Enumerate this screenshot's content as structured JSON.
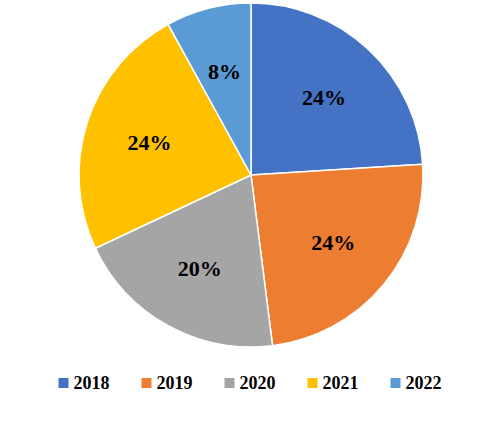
{
  "chart_data": {
    "type": "pie",
    "categories": [
      "2018",
      "2019",
      "2020",
      "2021",
      "2022"
    ],
    "values": [
      24,
      24,
      20,
      24,
      8
    ],
    "value_labels": [
      "24%",
      "24%",
      "20%",
      "24%",
      "8%"
    ],
    "colors": [
      "#4472c4",
      "#ed7d31",
      "#a5a5a5",
      "#ffc000",
      "#5b9bd5"
    ],
    "data_labels": true,
    "legend": "bottom"
  }
}
